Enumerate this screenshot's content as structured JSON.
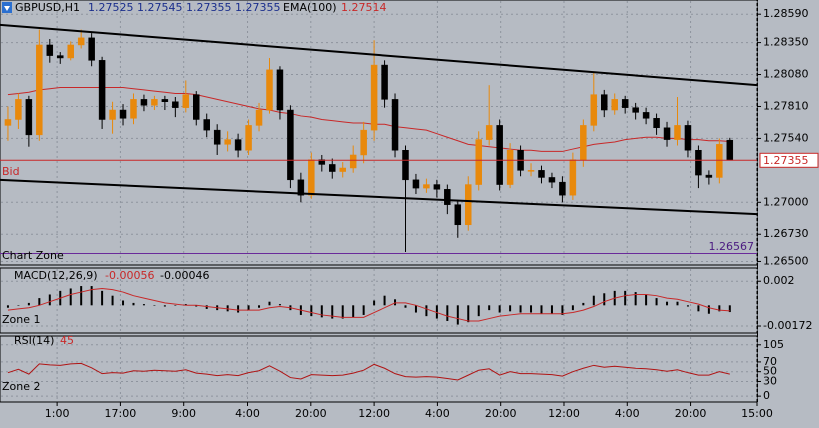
{
  "chart_data": [
    {
      "type": "candlestick",
      "title": "GBPUSD,H1",
      "up_color": "#e8890c",
      "down_color": "#000000",
      "x": [
        0,
        1,
        2,
        3,
        4,
        5,
        6,
        7,
        8,
        9,
        10,
        11,
        12,
        13,
        14,
        15,
        16,
        17,
        18,
        19,
        20,
        21,
        22,
        23,
        24,
        25,
        26,
        27,
        28,
        29,
        30,
        31,
        32,
        33,
        34,
        35,
        36,
        37,
        38,
        39,
        40,
        41,
        42,
        43,
        44,
        45,
        46,
        47,
        48,
        49,
        50,
        51,
        52,
        53,
        54,
        55,
        56,
        57,
        58,
        59,
        60,
        61,
        62,
        63,
        64,
        65,
        66,
        67,
        68,
        69
      ],
      "open": [
        1.2765,
        1.277,
        1.2787,
        1.2757,
        1.2833,
        1.2824,
        1.2822,
        1.2833,
        1.2839,
        1.282,
        1.277,
        1.2778,
        1.2771,
        1.2787,
        1.2782,
        1.2787,
        1.2785,
        1.278,
        1.2791,
        1.277,
        1.2761,
        1.2749,
        1.2753,
        1.2744,
        1.2765,
        1.2778,
        1.2812,
        1.2778,
        1.2719,
        1.2706,
        1.2736,
        1.2732,
        1.2726,
        1.2729,
        1.274,
        1.2761,
        1.2816,
        1.2787,
        1.2744,
        1.2719,
        1.2712,
        1.2715,
        1.2711,
        1.2698,
        1.2681,
        1.2715,
        1.2753,
        1.2765,
        1.2715,
        1.2744,
        1.2727,
        1.2727,
        1.2721,
        1.2717,
        1.2706,
        1.2736,
        1.2765,
        1.2791,
        1.2778,
        1.2787,
        1.278,
        1.2776,
        1.2771,
        1.2763,
        1.2753,
        1.2765,
        1.2744,
        1.2723,
        1.2721,
        1.27525
      ],
      "high": [
        1.2781,
        1.2792,
        1.279,
        1.2846,
        1.2838,
        1.2827,
        1.2836,
        1.2846,
        1.2843,
        1.2823,
        1.2785,
        1.2783,
        1.2792,
        1.2791,
        1.279,
        1.279,
        1.2789,
        1.2803,
        1.2794,
        1.2775,
        1.2766,
        1.276,
        1.2758,
        1.277,
        1.2784,
        1.2822,
        1.2815,
        1.2782,
        1.2725,
        1.2742,
        1.274,
        1.2737,
        1.2734,
        1.2748,
        1.2768,
        1.2837,
        1.282,
        1.2792,
        1.2748,
        1.2724,
        1.272,
        1.2719,
        1.2715,
        1.2702,
        1.2722,
        1.276,
        1.2799,
        1.277,
        1.275,
        1.2748,
        1.2733,
        1.2731,
        1.2725,
        1.2722,
        1.2742,
        1.277,
        1.281,
        1.2795,
        1.2792,
        1.279,
        1.2784,
        1.278,
        1.2775,
        1.2768,
        1.2789,
        1.2769,
        1.2748,
        1.2727,
        1.2754,
        1.27545
      ],
      "low": [
        1.2752,
        1.2762,
        1.2747,
        1.2752,
        1.2818,
        1.2817,
        1.282,
        1.283,
        1.2815,
        1.2762,
        1.2758,
        1.2765,
        1.2766,
        1.2777,
        1.2778,
        1.2778,
        1.2772,
        1.2776,
        1.2765,
        1.2755,
        1.274,
        1.2743,
        1.2738,
        1.274,
        1.276,
        1.2775,
        1.277,
        1.2712,
        1.27,
        1.2703,
        1.2726,
        1.272,
        1.2721,
        1.2725,
        1.2733,
        1.2752,
        1.278,
        1.2738,
        1.2658,
        1.2707,
        1.2708,
        1.2704,
        1.269,
        1.267,
        1.2676,
        1.271,
        1.2748,
        1.271,
        1.2712,
        1.2722,
        1.2722,
        1.2716,
        1.2712,
        1.27,
        1.2702,
        1.273,
        1.276,
        1.2772,
        1.2774,
        1.2775,
        1.277,
        1.2766,
        1.2757,
        1.2747,
        1.2748,
        1.2738,
        1.2712,
        1.2715,
        1.2716,
        1.27355
      ],
      "close": [
        1.277,
        1.2787,
        1.2757,
        1.2833,
        1.2824,
        1.2822,
        1.2833,
        1.2839,
        1.282,
        1.277,
        1.2778,
        1.2771,
        1.2787,
        1.2782,
        1.2787,
        1.2785,
        1.278,
        1.2791,
        1.277,
        1.2761,
        1.2749,
        1.2753,
        1.2744,
        1.2765,
        1.2778,
        1.2812,
        1.2778,
        1.2719,
        1.2706,
        1.2736,
        1.2732,
        1.2726,
        1.2729,
        1.274,
        1.2761,
        1.2816,
        1.2787,
        1.2744,
        1.2719,
        1.2712,
        1.2715,
        1.2711,
        1.2698,
        1.2681,
        1.2715,
        1.2753,
        1.2765,
        1.2715,
        1.2744,
        1.2727,
        1.2727,
        1.2721,
        1.2717,
        1.2706,
        1.2736,
        1.2765,
        1.2791,
        1.2778,
        1.2787,
        1.278,
        1.2776,
        1.2771,
        1.2763,
        1.2753,
        1.2765,
        1.2744,
        1.2723,
        1.2721,
        1.2749,
        1.27355
      ],
      "ema": {
        "name": "EMA(100)",
        "color": "#c82828",
        "values": [
          1.2791,
          1.2792,
          1.2793,
          1.2795,
          1.2796,
          1.2797,
          1.2797,
          1.2797,
          1.2797,
          1.2797,
          1.2797,
          1.2797,
          1.2796,
          1.2795,
          1.2794,
          1.2793,
          1.2792,
          1.2792,
          1.2791,
          1.2789,
          1.2787,
          1.2785,
          1.2783,
          1.2781,
          1.2779,
          1.2778,
          1.2776,
          1.2775,
          1.2773,
          1.2772,
          1.277,
          1.2769,
          1.2768,
          1.2767,
          1.2767,
          1.2766,
          1.2766,
          1.2764,
          1.2763,
          1.2762,
          1.2761,
          1.2758,
          1.2755,
          1.2752,
          1.2749,
          1.2748,
          1.2747,
          1.2746,
          1.2745,
          1.2744,
          1.2744,
          1.2743,
          1.2743,
          1.2743,
          1.2745,
          1.2747,
          1.2749,
          1.275,
          1.2751,
          1.2753,
          1.2754,
          1.2755,
          1.2755,
          1.2754,
          1.2754,
          1.2753,
          1.2753,
          1.2752,
          1.2752,
          1.27514
        ]
      },
      "trendlines": [
        {
          "color": "#000000",
          "x": [
            -0.76,
            71.6
          ],
          "values": [
            1.285,
            1.2799
          ]
        },
        {
          "color": "#000000",
          "x": [
            -0.76,
            71.6
          ],
          "values": [
            1.2719,
            1.269
          ]
        }
      ],
      "bid_label": "Bid",
      "bid_color": "#c82828",
      "zone_label": "Chart Zone",
      "zone_level": 1.26567,
      "zone_color": "#6a2a9a",
      "xlim": [
        -0.76,
        71.6
      ],
      "ylim": [
        1.2647,
        1.2871
      ],
      "yticks": [
        {
          "value": 1.2859,
          "label": "1.28590"
        },
        {
          "value": 1.2835,
          "label": "1.28350"
        },
        {
          "value": 1.2808,
          "label": "1.28080"
        },
        {
          "value": 1.2781,
          "label": "1.27810"
        },
        {
          "value": 1.2754,
          "label": "1.27540"
        },
        {
          "value": 1.27,
          "label": "1.27000"
        },
        {
          "value": 1.2673,
          "label": "1.26730"
        },
        {
          "value": 1.265,
          "label": "1.26500"
        }
      ],
      "xticks": [
        {
          "value": 4.7,
          "label": "1:00"
        },
        {
          "value": 10.75,
          "label": "17:00"
        },
        {
          "value": 16.8,
          "label": "9:00"
        },
        {
          "value": 22.9,
          "label": "4:00"
        },
        {
          "value": 28.95,
          "label": "20:00"
        },
        {
          "value": 35,
          "label": "12:00"
        },
        {
          "value": 41.05,
          "label": "4:00"
        },
        {
          "value": 47.1,
          "label": "20:00"
        },
        {
          "value": 53.15,
          "label": "12:00"
        },
        {
          "value": 59.2,
          "label": "4:00"
        },
        {
          "value": 65.25,
          "label": "20:00"
        },
        {
          "value": 71.6,
          "label": "15:00"
        }
      ],
      "grid": true
    },
    {
      "type": "macd",
      "title": "MACD(12,26,9)",
      "zone_label": "Zone 1",
      "series": [
        {
          "color": "#000000",
          "values": [
            -0.0002,
            0.0,
            0.0002,
            0.0006,
            0.0009,
            0.0012,
            0.0014,
            0.0016,
            0.0016,
            0.0012,
            0.0008,
            0.0004,
            0.0002,
            0.0001,
            0.0,
            -0.0001,
            0.0,
            0.0001,
            -0.0001,
            -0.0003,
            -0.0004,
            -0.0005,
            -0.0006,
            -0.0004,
            -0.0002,
            0.0003,
            0.0001,
            -0.0004,
            -0.0008,
            -0.0009,
            -0.001,
            -0.0011,
            -0.0011,
            -0.001,
            -0.0008,
            0.0004,
            0.0008,
            0.0005,
            -0.0002,
            -0.0006,
            -0.0009,
            -0.0011,
            -0.0013,
            -0.0016,
            -0.0014,
            -0.0009,
            -0.0004,
            -0.0006,
            -0.0005,
            -0.0006,
            -0.0006,
            -0.0007,
            -0.0007,
            -0.0008,
            -0.0004,
            0.0002,
            0.0008,
            0.001,
            0.0012,
            0.0012,
            0.0011,
            0.0009,
            0.0006,
            0.0003,
            0.0003,
            -0.0001,
            -0.0005,
            -0.0007,
            -0.0005,
            -0.00056
          ]
        },
        {
          "color": "#c82828",
          "values": [
            -0.0004,
            -0.0003,
            -0.0002,
            0.0,
            0.0003,
            0.0006,
            0.0009,
            0.0011,
            0.0013,
            0.0014,
            0.0013,
            0.0011,
            0.0008,
            0.0006,
            0.0004,
            0.0002,
            0.0001,
            0.0,
            0.0,
            -0.0001,
            -0.0002,
            -0.0003,
            -0.0004,
            -0.0004,
            -0.0004,
            -0.0002,
            -0.0001,
            -0.0002,
            -0.0004,
            -0.0006,
            -0.0008,
            -0.0009,
            -0.001,
            -0.001,
            -0.001,
            -0.0006,
            -0.0002,
            0.0002,
            0.0002,
            0.0,
            -0.0003,
            -0.0006,
            -0.0009,
            -0.0011,
            -0.0013,
            -0.0013,
            -0.0011,
            -0.0009,
            -0.0008,
            -0.0007,
            -0.0007,
            -0.0007,
            -0.0007,
            -0.0007,
            -0.0006,
            -0.0004,
            -0.0001,
            0.0003,
            0.0006,
            0.0008,
            0.0009,
            0.0009,
            0.0008,
            0.0006,
            0.0005,
            0.0003,
            0.0001,
            -0.0002,
            -0.0004,
            -0.00046
          ]
        }
      ],
      "ylim": [
        -0.0023,
        0.0031
      ],
      "yticks": [
        0.002,
        -0.00172
      ],
      "grid": true
    },
    {
      "type": "line",
      "title": "RSI(14)",
      "zone_label": "Zone 2",
      "color": "#b01414",
      "values": [
        48,
        55,
        45,
        66,
        64,
        63,
        66,
        67,
        58,
        46,
        48,
        47,
        52,
        51,
        53,
        52,
        51,
        54,
        47,
        45,
        42,
        44,
        42,
        48,
        52,
        62,
        51,
        38,
        35,
        44,
        43,
        42,
        43,
        47,
        53,
        65,
        57,
        46,
        40,
        39,
        40,
        39,
        36,
        33,
        43,
        53,
        56,
        43,
        50,
        46,
        46,
        45,
        44,
        41,
        50,
        57,
        63,
        59,
        61,
        59,
        57,
        56,
        54,
        51,
        54,
        48,
        43,
        43,
        50,
        45
      ],
      "ylim": [
        -12,
        123
      ],
      "yticks": [
        105,
        70,
        50,
        30,
        0
      ],
      "grid": true
    }
  ]
}
